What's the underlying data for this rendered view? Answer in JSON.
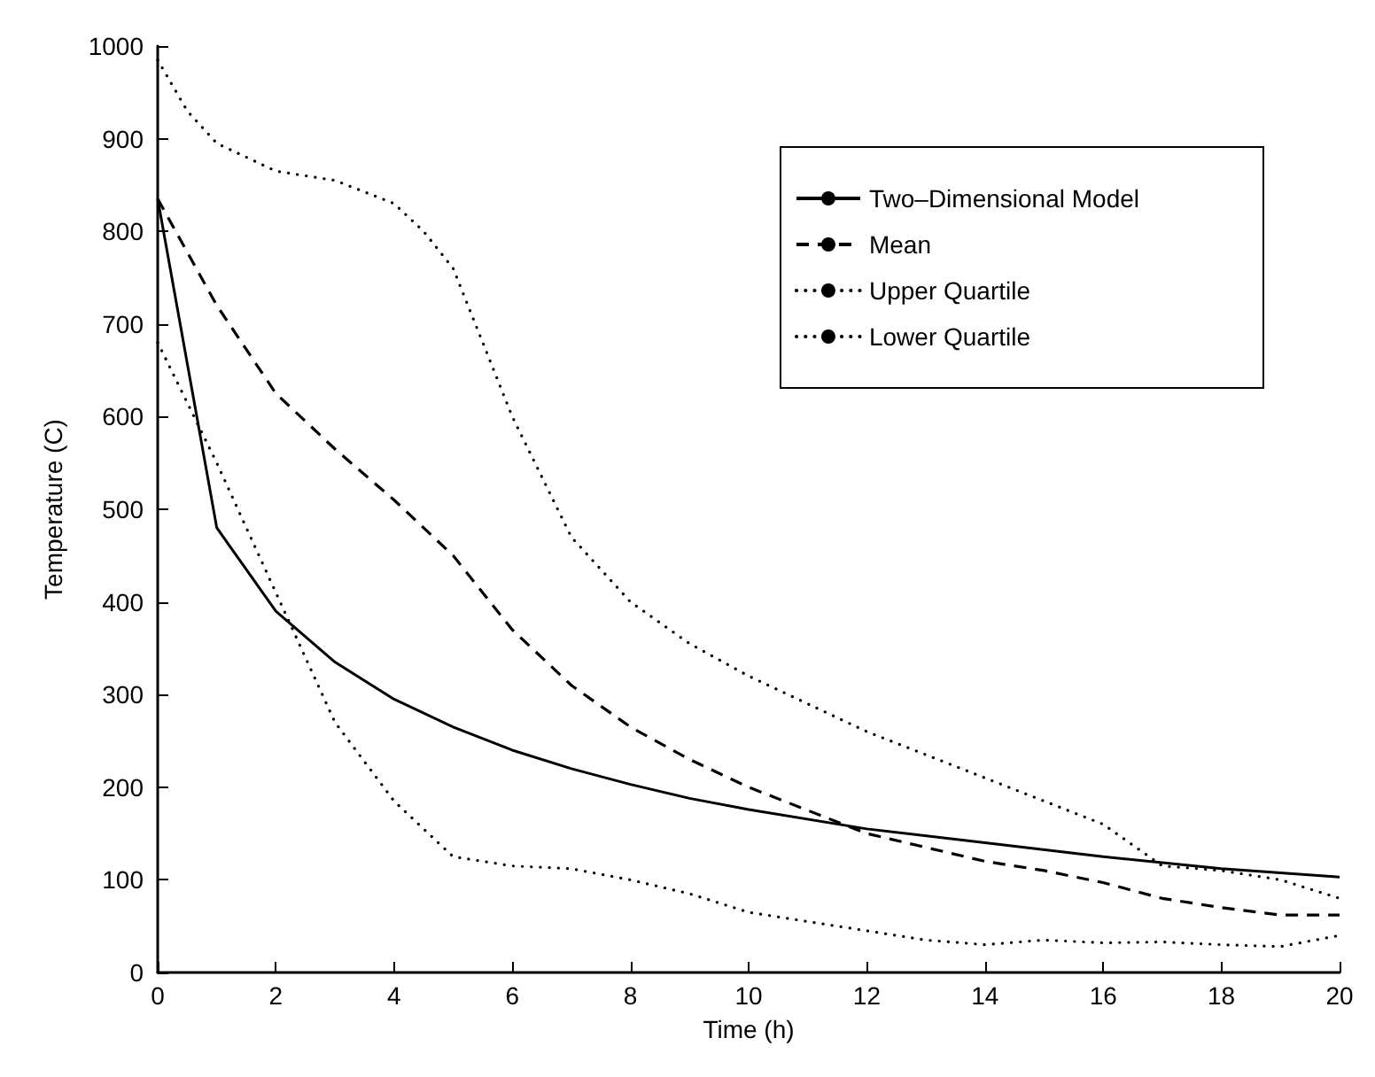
{
  "chart_data": {
    "type": "line",
    "xlabel": "Time (h)",
    "ylabel": "Temperature (C)",
    "xlim": [
      0,
      20
    ],
    "xticks": [
      0,
      2,
      4,
      6,
      8,
      10,
      12,
      14,
      16,
      18,
      20
    ],
    "ylim": [
      0,
      1000
    ],
    "yticks": [
      0,
      100,
      200,
      300,
      400,
      500,
      600,
      700,
      800,
      900,
      1000
    ],
    "grid": false,
    "legend": "top right",
    "marker": "none",
    "series": [
      {
        "name": "Two–Dimensional Model",
        "color": "#000000",
        "line_style": "solid",
        "x": [
          0,
          1,
          2,
          3,
          4,
          5,
          6,
          7,
          8,
          9,
          10,
          12,
          14,
          16,
          18,
          20
        ],
        "values": [
          835,
          480,
          390,
          335,
          295,
          265,
          240,
          220,
          203,
          188,
          176,
          155,
          140,
          125,
          112,
          103
        ]
      },
      {
        "name": "Mean",
        "color": "#000000",
        "line_style": "dashed",
        "x": [
          0,
          1,
          2,
          3,
          4,
          5,
          6,
          7,
          8,
          9,
          10,
          11,
          12,
          13,
          14,
          15,
          16,
          17,
          18,
          19,
          20
        ],
        "values": [
          835,
          720,
          625,
          565,
          510,
          450,
          370,
          310,
          265,
          230,
          200,
          175,
          150,
          135,
          120,
          110,
          97,
          80,
          70,
          62,
          62
        ]
      },
      {
        "name": "Upper Quartile",
        "color": "#000000",
        "line_style": "dotted",
        "x": [
          0,
          0.5,
          1,
          2,
          3,
          4,
          4.5,
          5,
          6,
          7,
          8,
          9,
          10,
          11,
          12,
          13,
          14,
          15,
          16,
          17,
          18,
          19,
          20
        ],
        "values": [
          985,
          930,
          895,
          865,
          855,
          830,
          800,
          760,
          600,
          470,
          400,
          355,
          320,
          290,
          260,
          235,
          210,
          185,
          160,
          115,
          110,
          100,
          80
        ]
      },
      {
        "name": "Lower Quartile",
        "color": "#000000",
        "line_style": "dotted",
        "x": [
          0,
          1,
          2,
          3,
          4,
          5,
          6,
          7,
          8,
          9,
          10,
          11,
          12,
          13,
          14,
          15,
          16,
          17,
          18,
          19,
          20
        ],
        "values": [
          680,
          550,
          410,
          270,
          185,
          125,
          115,
          112,
          100,
          85,
          65,
          55,
          45,
          35,
          30,
          35,
          32,
          33,
          30,
          28,
          40
        ]
      }
    ]
  }
}
